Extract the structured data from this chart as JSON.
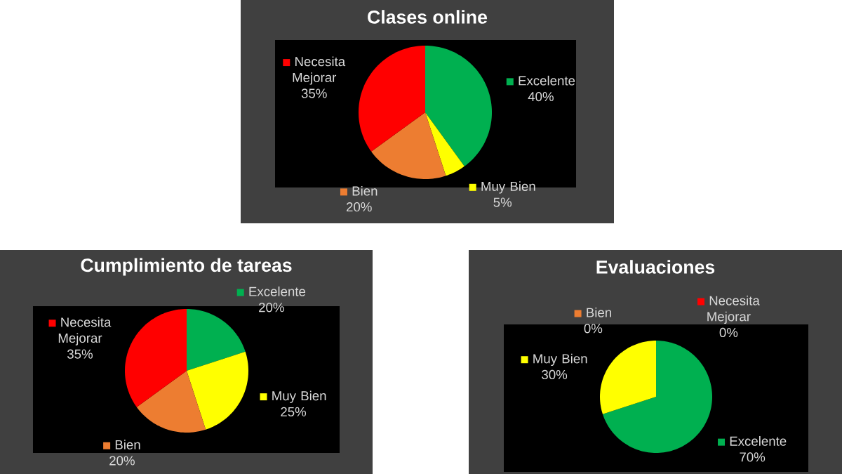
{
  "chart_data": [
    {
      "type": "pie",
      "title": "Clases online",
      "categories": [
        "Excelente",
        "Muy Bien",
        "Bien",
        "Necesita Mejorar"
      ],
      "values": [
        40,
        5,
        20,
        35
      ],
      "colors": [
        "#00b050",
        "#ffff00",
        "#ed7d31",
        "#ff0000"
      ],
      "value_labels": [
        "40%",
        "5%",
        "20%",
        "35%"
      ],
      "legend": "center"
    },
    {
      "type": "pie",
      "title": "Cumplimiento de tareas",
      "categories": [
        "Excelente",
        "Muy Bien",
        "Bien",
        "Necesita Mejorar"
      ],
      "values": [
        20,
        25,
        20,
        35
      ],
      "colors": [
        "#00b050",
        "#ffff00",
        "#ed7d31",
        "#ff0000"
      ],
      "value_labels": [
        "20%",
        "25%",
        "20%",
        "35%"
      ],
      "legend": "center"
    },
    {
      "type": "pie",
      "title": "Evaluaciones",
      "categories": [
        "Excelente",
        "Muy Bien",
        "Bien",
        "Necesita Mejorar"
      ],
      "values": [
        70,
        30,
        0,
        0
      ],
      "colors": [
        "#00b050",
        "#ffff00",
        "#ed7d31",
        "#ff0000"
      ],
      "value_labels": [
        "70%",
        "30%",
        "0%",
        "0%"
      ],
      "legend": "center"
    }
  ]
}
